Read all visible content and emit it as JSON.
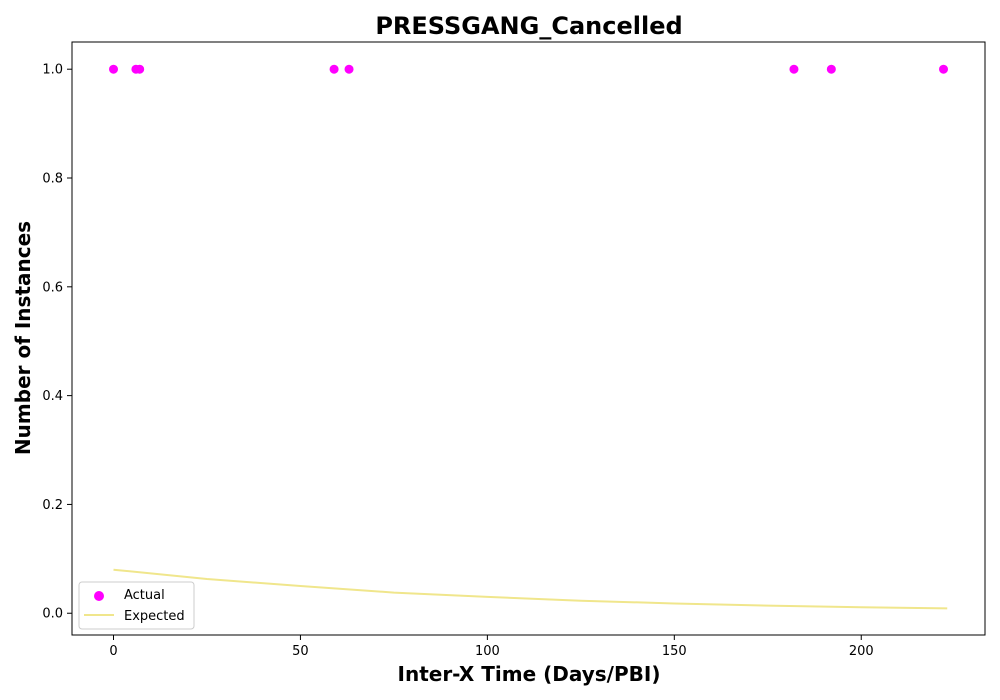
{
  "chart_data": {
    "type": "scatter",
    "title": "PRESSGANG_Cancelled",
    "xlabel": "Inter-X Time (Days/PBI)",
    "ylabel": "Number of Instances",
    "xlim": [
      -11.1,
      233.1
    ],
    "ylim": [
      -0.04,
      1.05
    ],
    "x_ticks": [
      0,
      50,
      100,
      150,
      200
    ],
    "y_ticks": [
      0.0,
      0.2,
      0.4,
      0.6,
      0.8,
      1.0
    ],
    "x_tick_labels": [
      "0",
      "50",
      "100",
      "150",
      "200"
    ],
    "y_tick_labels": [
      "0.0",
      "0.2",
      "0.4",
      "0.6",
      "0.8",
      "1.0"
    ],
    "grid": false,
    "legend_position": "lower-left",
    "series": [
      {
        "name": "Actual",
        "kind": "scatter",
        "color": "#ff00ff",
        "x": [
          0,
          6,
          7,
          59,
          63,
          182,
          192,
          222
        ],
        "y": [
          1,
          1,
          1,
          1,
          1,
          1,
          1,
          1
        ]
      },
      {
        "name": "Expected",
        "kind": "line",
        "color": "#f0e68c",
        "x": [
          0,
          25,
          50,
          75,
          100,
          125,
          150,
          175,
          200,
          223
        ],
        "y": [
          0.08,
          0.063,
          0.05,
          0.038,
          0.03,
          0.023,
          0.018,
          0.014,
          0.011,
          0.009
        ]
      }
    ]
  }
}
